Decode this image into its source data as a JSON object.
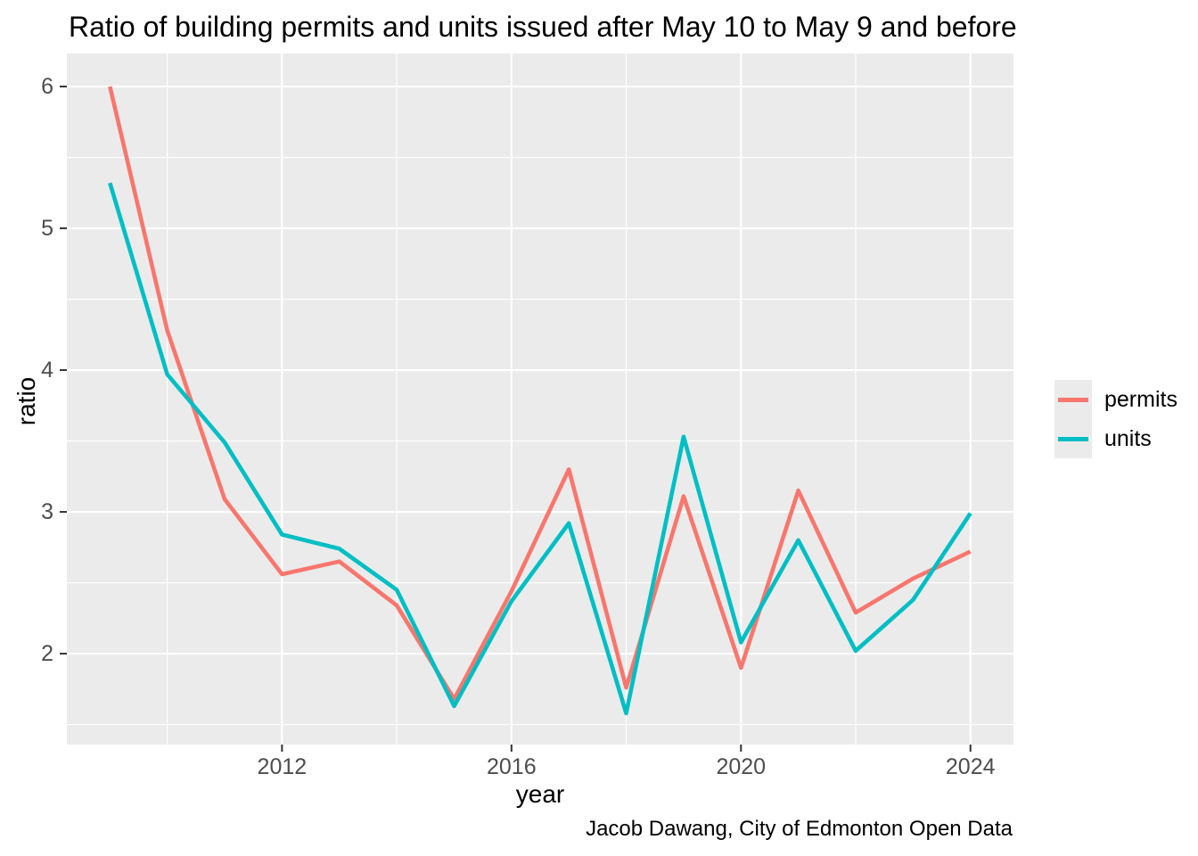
{
  "title": "Ratio of building permits and units issued after May 10 to May 9 and before",
  "caption": "Jacob Dawang, City of Edmonton Open Data",
  "legend": {
    "items": [
      {
        "label": "permits",
        "color": "#F8766D"
      },
      {
        "label": "units",
        "color": "#00BFC4"
      }
    ]
  },
  "chart_data": {
    "type": "line",
    "title": "Ratio of building permits and units issued after May 10 to May 9 and before",
    "xlabel": "year",
    "ylabel": "ratio",
    "x": [
      2009,
      2010,
      2011,
      2012,
      2013,
      2014,
      2015,
      2016,
      2017,
      2018,
      2019,
      2020,
      2021,
      2022,
      2023,
      2024
    ],
    "series": [
      {
        "name": "permits",
        "color": "#F8766D",
        "values": [
          6.0,
          4.28,
          3.09,
          2.56,
          2.65,
          2.34,
          1.68,
          2.44,
          3.3,
          1.76,
          3.11,
          1.9,
          3.15,
          2.29,
          2.53,
          2.72
        ]
      },
      {
        "name": "units",
        "color": "#00BFC4",
        "values": [
          5.32,
          3.97,
          3.49,
          2.84,
          2.74,
          2.45,
          1.63,
          2.37,
          2.92,
          1.58,
          3.53,
          2.08,
          2.8,
          2.02,
          2.38,
          2.99
        ]
      }
    ],
    "xlim": [
      2008.25,
      2024.75
    ],
    "ylim": [
      1.359,
      6.233
    ],
    "x_ticks": [
      2012,
      2016,
      2020,
      2024
    ],
    "x_minor_breaks": [
      2010,
      2014,
      2018,
      2022
    ],
    "y_ticks": [
      2,
      3,
      4,
      5,
      6
    ],
    "y_minor_breaks": [
      1.5,
      2.5,
      3.5,
      4.5,
      5.5
    ],
    "grid": true,
    "legend_position": "right",
    "panel_bg": "#EBEBEB",
    "grid_color": "#FFFFFF",
    "tick_color": "#333333",
    "tick_label_color": "#4D4D4D"
  }
}
